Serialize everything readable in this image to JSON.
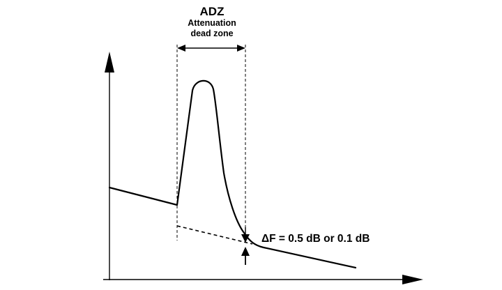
{
  "labels": {
    "title": "ADZ",
    "subtitle_line1": "Attenuation",
    "subtitle_line2": "dead zone",
    "delta": "ΔF = 0.5 dB or 0.1 dB"
  },
  "colors": {
    "ink": "#000000",
    "background": "#ffffff"
  }
}
